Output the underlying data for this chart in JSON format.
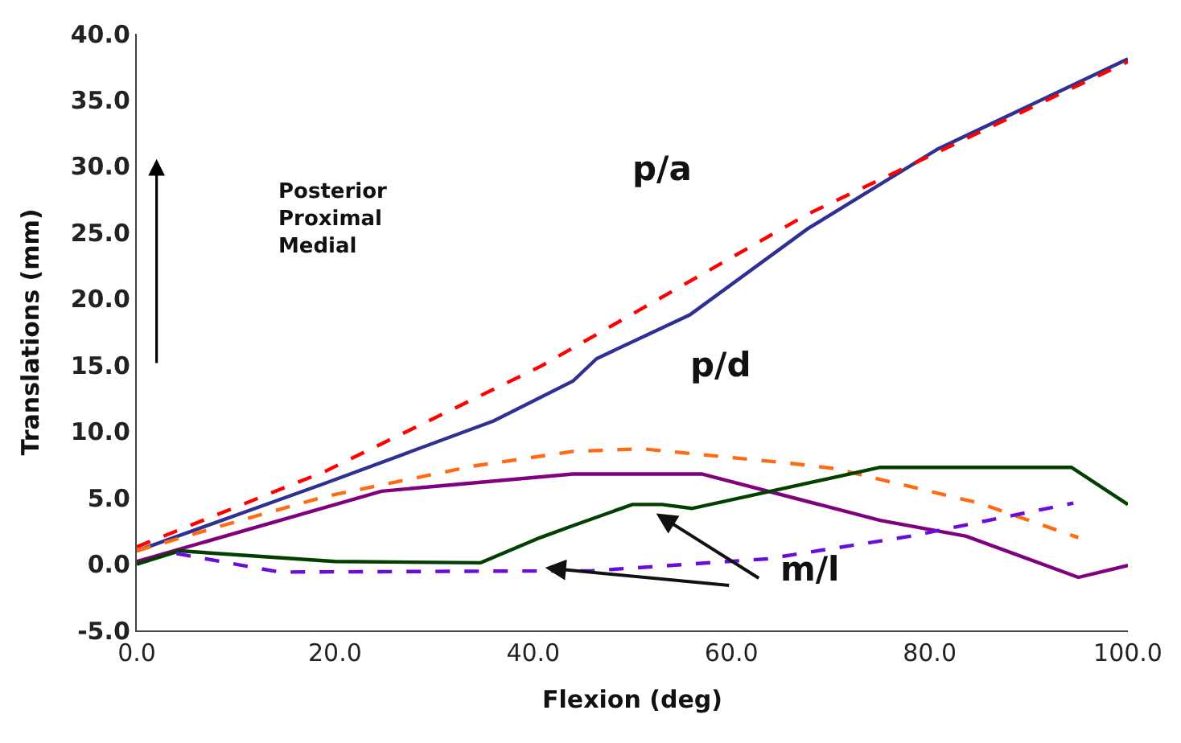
{
  "chart_data": {
    "type": "line",
    "xlabel": "Flexion (deg)",
    "ylabel": "Translations (mm)",
    "xlim": [
      0,
      100
    ],
    "xticks": [
      {
        "value": 0,
        "label": "0.0"
      },
      {
        "value": 20,
        "label": "20.0"
      },
      {
        "value": 40,
        "label": "40.0"
      },
      {
        "value": 60,
        "label": "60.0"
      },
      {
        "value": 80,
        "label": "80.0"
      },
      {
        "value": 100,
        "label": "100.0"
      }
    ],
    "ylim": [
      -5,
      40
    ],
    "yticks": [
      {
        "value": -5,
        "label": "-5.0"
      },
      {
        "value": 0,
        "label": "0.0"
      },
      {
        "value": 5,
        "label": "5.0"
      },
      {
        "value": 10,
        "label": "10.0"
      },
      {
        "value": 15,
        "label": "15.0"
      },
      {
        "value": 20,
        "label": "20.0"
      },
      {
        "value": 25,
        "label": "25.0"
      },
      {
        "value": 30,
        "label": "30.0"
      },
      {
        "value": 35,
        "label": "35.0"
      },
      {
        "value": 40,
        "label": "40.0"
      }
    ],
    "marker": "none",
    "series": [
      {
        "color": "#2e3192",
        "line_style": "solid",
        "x": [
          0,
          19,
          36,
          44,
          46.4,
          55.8,
          67.7,
          80.8,
          100
        ],
        "values": [
          1.0,
          6.1,
          10.8,
          13.8,
          15.5,
          18.8,
          25.3,
          31.3,
          38.1
        ]
      },
      {
        "color": "#ff0000",
        "line_style": "dashed",
        "x": [
          0,
          19,
          40.7,
          67.7,
          100
        ],
        "values": [
          1.3,
          7.0,
          14.9,
          26.4,
          37.9
        ]
      },
      {
        "color": "#ff6a13",
        "line_style": "dashed",
        "x": [
          0,
          8.6,
          19,
          34,
          44,
          51,
          66,
          70.5,
          85,
          95
        ],
        "values": [
          1.0,
          2.9,
          5.1,
          7.4,
          8.5,
          8.7,
          7.6,
          7.2,
          4.6,
          2.0
        ]
      },
      {
        "color": "#800080",
        "line_style": "solid",
        "x": [
          0,
          24.7,
          44,
          57,
          75,
          83.7,
          95,
          100
        ],
        "values": [
          0.2,
          5.5,
          6.8,
          6.8,
          3.3,
          2.1,
          -1.0,
          -0.1
        ]
      },
      {
        "color": "#004000",
        "line_style": "solid",
        "x": [
          0,
          4.3,
          20,
          34.7,
          40.7,
          44,
          50,
          53,
          56,
          75,
          94.3,
          100
        ],
        "values": [
          0,
          1.0,
          0.2,
          0.1,
          2.0,
          2.9,
          4.5,
          4.5,
          4.2,
          7.3,
          7.3,
          4.5
        ]
      },
      {
        "color": "#6a0dd8",
        "line_style": "dashed",
        "x": [
          4,
          14.4,
          46,
          63.6,
          78,
          94.5
        ],
        "values": [
          0.8,
          -0.6,
          -0.5,
          0.4,
          2.1,
          4.6
        ]
      }
    ],
    "annotations": [
      "p/a",
      "p/d",
      "m/l",
      "Posterior\nProximal\nMedial"
    ]
  }
}
